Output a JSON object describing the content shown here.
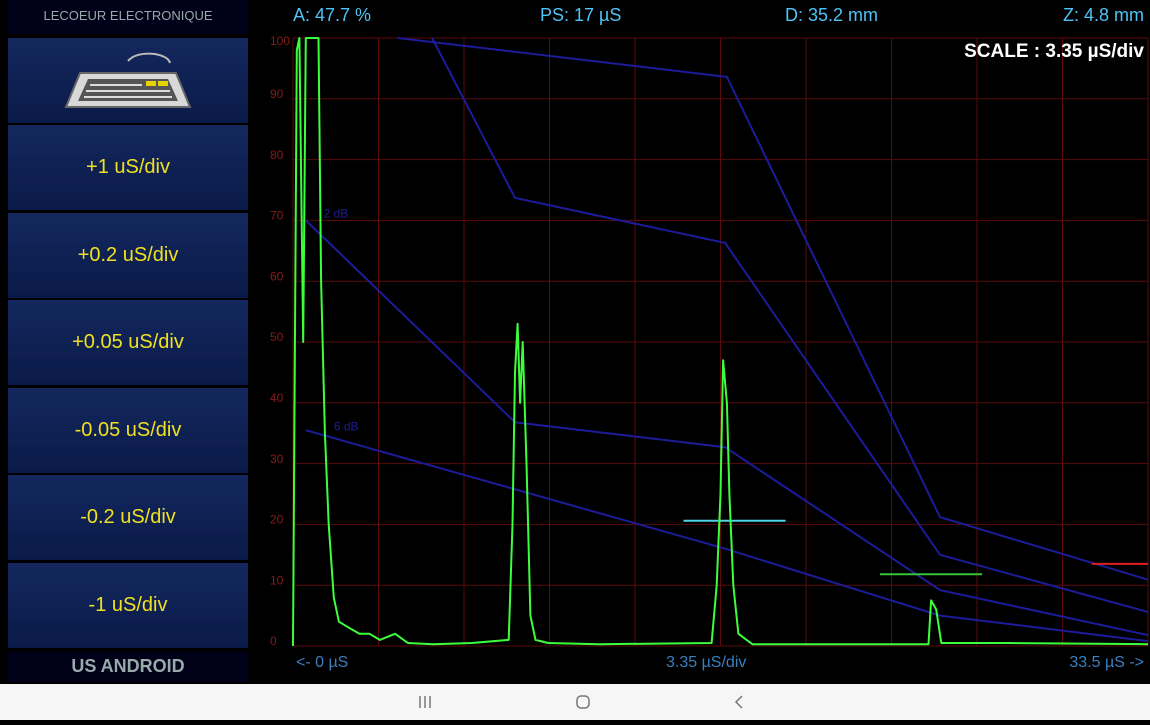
{
  "header": {
    "brand": "LECOEUR ELECTRONIQUE",
    "amplitude": "A: 47.7 %",
    "pulse": "PS: 17 µS",
    "distance": "D: 35.2 mm",
    "zero": "Z: 4.8 mm"
  },
  "sidebar": {
    "buttons": [
      "+1 uS/div",
      "+0.2 uS/div",
      "+0.05 uS/div",
      "-0.05 uS/div",
      "-0.2 uS/div",
      "-1 uS/div"
    ],
    "footer": "US ANDROID"
  },
  "chart_data": {
    "type": "line",
    "scale_label": "SCALE : 3.35  µS/div",
    "x_labels": [
      "<- 0 µS",
      "3.35 µS/div",
      "33.5 µS ->"
    ],
    "xlim": [
      0,
      33.5
    ],
    "xticks": [
      0,
      3.35,
      6.7,
      10.05,
      13.4,
      16.75,
      20.1,
      23.45,
      26.8,
      30.15,
      33.5
    ],
    "ylim": [
      0,
      100
    ],
    "yticks": [
      0,
      10,
      20,
      30,
      40,
      50,
      60,
      70,
      80,
      90,
      100
    ],
    "grid": true,
    "grid_color": "#5c0a0a",
    "x": [
      0.0,
      0.15,
      0.25,
      0.4,
      0.5,
      0.8,
      1.0,
      1.1,
      1.25,
      1.4,
      1.6,
      1.8,
      2.2,
      2.6,
      3.0,
      3.4,
      4.0,
      4.5,
      5.5,
      7.0,
      8.45,
      8.6,
      8.7,
      8.8,
      8.9,
      9.0,
      9.15,
      9.3,
      9.5,
      10.0,
      12.0,
      16.4,
      16.6,
      16.75,
      16.85,
      17.0,
      17.1,
      17.25,
      17.45,
      18.0,
      24.9,
      25.0,
      25.2,
      25.4,
      28.0,
      33.5
    ],
    "series": [
      {
        "color": "#3cff3c",
        "values": [
          0,
          98,
          100,
          50,
          100,
          100,
          100,
          60,
          35,
          20,
          8,
          4,
          3,
          2,
          2,
          1,
          2,
          0.5,
          0.3,
          0.5,
          1,
          20,
          45,
          53,
          40,
          50,
          30,
          5,
          1,
          0.5,
          0.3,
          0.5,
          10,
          25,
          47,
          40,
          25,
          10,
          2,
          0.3,
          0.3,
          7.5,
          6,
          0.5,
          0.5,
          0.3
        ]
      }
    ],
    "dac_color": "#1c1c9a",
    "dac_curves": [
      {
        "x": [
          4.1,
          17.0,
          25.35,
          33.5
        ],
        "values": [
          100,
          93.6,
          21.2,
          10.9
        ]
      },
      {
        "x": [
          5.45,
          8.7,
          16.93,
          25.35,
          33.5
        ],
        "values": [
          100,
          73.7,
          66.3,
          15,
          5.6
        ]
      },
      {
        "x": [
          0.5,
          8.7,
          16.93,
          25.35,
          33.5
        ],
        "values": [
          70,
          36.8,
          32.7,
          9.2,
          1.8
        ]
      },
      {
        "x": [
          0.5,
          16.93,
          25.35,
          33.5
        ],
        "values": [
          35.5,
          16,
          5,
          0.8
        ]
      }
    ],
    "dac_labels": [
      {
        "text": "2 dB",
        "x": 1.2,
        "y": 71
      },
      {
        "text": "6 dB",
        "x": 1.6,
        "y": 36
      }
    ],
    "gates": [
      {
        "color": "#4fd2e6",
        "level": 20.6,
        "start": 15.3,
        "end": 19.3
      },
      {
        "color": "#36c436",
        "level": 11.8,
        "start": 23.0,
        "end": 27.0
      },
      {
        "color": "#e02020",
        "level": 13.5,
        "start": 31.3,
        "end": 33.5
      }
    ]
  }
}
